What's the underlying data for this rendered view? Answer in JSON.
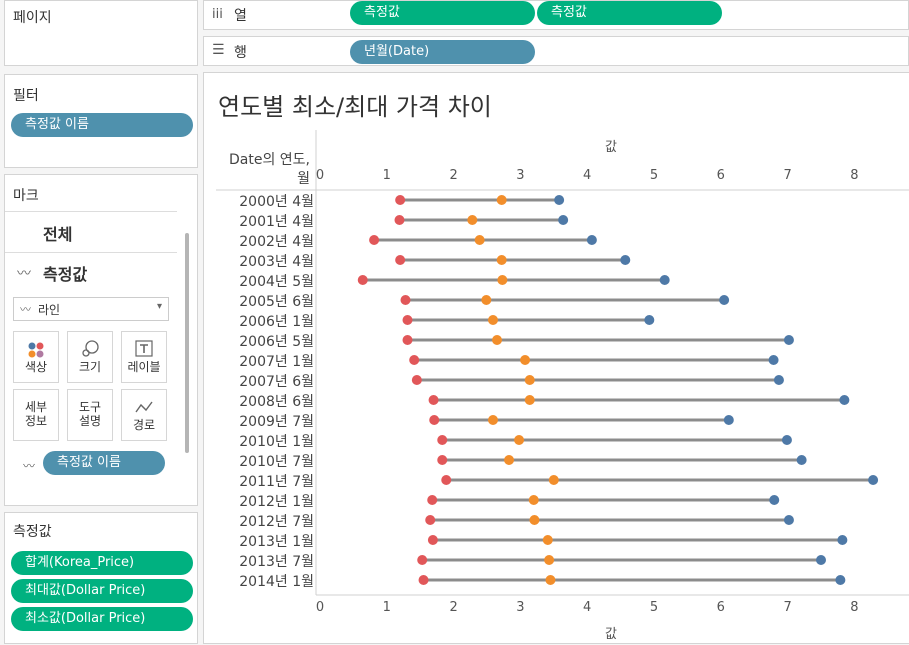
{
  "pages_panel": {
    "title": "페이지"
  },
  "columns_shelf": {
    "label": "열",
    "pills": [
      "측정값",
      "측정값"
    ]
  },
  "rows_shelf": {
    "label": "행",
    "pills": [
      "년월(Date)"
    ]
  },
  "filters_panel": {
    "title": "필터",
    "pills": [
      "측정값 이름"
    ]
  },
  "marks_panel": {
    "title": "마크",
    "all_label": "전체",
    "measure_label": "측정값",
    "mark_type": "라인",
    "buttons": {
      "color": "색상",
      "size": "크기",
      "label": "레이블",
      "detail": "세부\n정보",
      "tooltip": "도구\n설명",
      "path": "경로"
    },
    "path_pill": "측정값 이름"
  },
  "measures_panel": {
    "title": "측정값",
    "pills": [
      "합계(Korea_Price)",
      "최대값(Dollar Price)",
      "최소값(Dollar Price)"
    ]
  },
  "chart_title": "연도별 최소/최대 가격 차이",
  "row_header": "Date의 연도,\n월",
  "axis_top_title": "값",
  "axis_bottom_title": "값",
  "colors": {
    "min": "#e15759",
    "mid": "#f28e2b",
    "max": "#4e79a7",
    "line": "#8c8c8c"
  },
  "chart_data": {
    "type": "line",
    "x_axis_ticks": [
      0,
      1,
      2,
      3,
      4,
      5,
      6,
      7,
      8
    ],
    "xlim": [
      0,
      8.3
    ],
    "categories": [
      "2000년 4월",
      "2001년 4월",
      "2002년 4월",
      "2003년 4월",
      "2004년 5월",
      "2005년 6월",
      "2006년 1월",
      "2006년 5월",
      "2007년 1월",
      "2007년 6월",
      "2008년 6월",
      "2009년 7월",
      "2010년 1월",
      "2010년 7월",
      "2011년 7월",
      "2012년 1월",
      "2012년 7월",
      "2013년 1월",
      "2013년 7월",
      "2014년 1월"
    ],
    "series": [
      {
        "name": "최소값(Dollar Price)",
        "values": [
          1.2,
          1.19,
          0.81,
          1.2,
          0.64,
          1.28,
          1.31,
          1.31,
          1.41,
          1.45,
          1.7,
          1.71,
          1.83,
          1.83,
          1.89,
          1.68,
          1.65,
          1.69,
          1.53,
          1.55
        ]
      },
      {
        "name": "합계(Korea_Price)",
        "values": [
          2.72,
          2.28,
          2.39,
          2.72,
          2.73,
          2.49,
          2.59,
          2.65,
          3.07,
          3.14,
          3.14,
          2.59,
          2.98,
          2.83,
          3.5,
          3.2,
          3.21,
          3.41,
          3.43,
          3.45
        ]
      },
      {
        "name": "최대값(Dollar Price)",
        "values": [
          3.58,
          3.64,
          4.07,
          4.57,
          5.16,
          6.05,
          4.93,
          7.02,
          6.79,
          6.87,
          7.85,
          6.12,
          6.99,
          7.21,
          8.28,
          6.8,
          7.02,
          7.82,
          7.5,
          7.79
        ]
      }
    ]
  }
}
